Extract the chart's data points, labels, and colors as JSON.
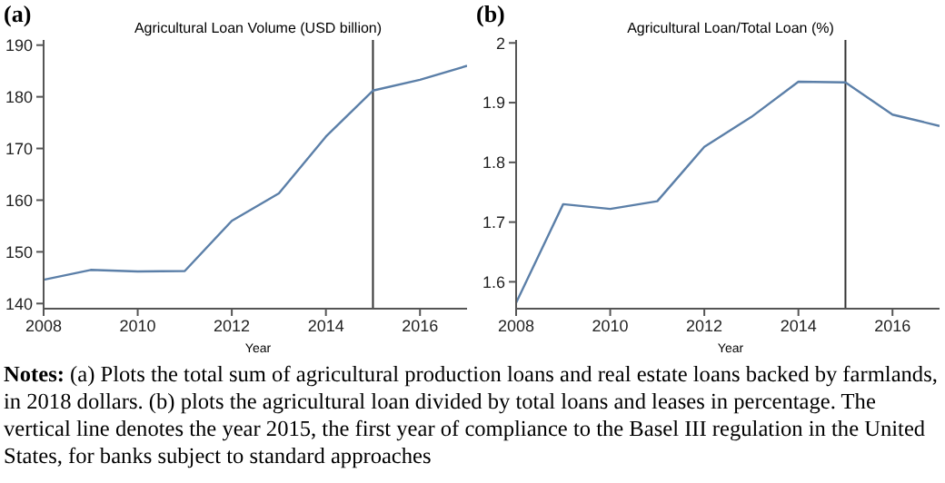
{
  "chart_data": [
    {
      "type": "line",
      "title": "(a)",
      "subtitle": "Agricultural Loan Volume (USD billion)",
      "xlabel": "Year",
      "x": [
        2008,
        2009,
        2010,
        2011,
        2012,
        2013,
        2014,
        2015,
        2016,
        2017
      ],
      "series": [
        {
          "color": "#5b7fa8",
          "values": [
            144.6,
            146.5,
            146.2,
            146.3,
            156,
            161.3,
            172.3,
            181.2,
            183.3,
            186
          ]
        }
      ],
      "xlim": [
        2008,
        2017
      ],
      "xticks": [
        2008,
        2010,
        2012,
        2014,
        2016
      ],
      "ylim": [
        139,
        191
      ],
      "yticks": [
        140,
        150,
        160,
        170,
        180,
        190
      ],
      "ref_lines": [
        {
          "axis": "x",
          "value": 2015,
          "color": "#333333"
        }
      ],
      "annotations": [
        "Notes: (a) Plots the total sum of agricultural production loans and real estate loans backed by farmlands, in 2018 dollars. (b) plots the agricultural loan divided by total loans and leases in percentage. The vertical line denotes the year 2015, the first year of compliance to the Basel III regulation in the United States, for banks subject to standard approaches"
      ]
    },
    {
      "type": "line",
      "title": "(b)",
      "subtitle": "Agricultural Loan/Total Loan (%)",
      "xlabel": "Year",
      "x": [
        2008,
        2009,
        2010,
        2011,
        2012,
        2013,
        2014,
        2015,
        2016,
        2017
      ],
      "series": [
        {
          "color": "#5b7fa8",
          "values": [
            1.565,
            1.73,
            1.722,
            1.735,
            1.826,
            1.876,
            1.935,
            1.934,
            1.88,
            1.861
          ]
        }
      ],
      "xlim": [
        2008,
        2017
      ],
      "xticks": [
        2008,
        2010,
        2012,
        2014,
        2016
      ],
      "ylim": [
        1.555,
        2.005
      ],
      "yticks": [
        1.6,
        1.7,
        1.8,
        1.9,
        {
          "value": 2,
          "label": "2"
        }
      ],
      "ref_lines": [
        {
          "axis": "x",
          "value": 2015,
          "color": "#333333"
        }
      ]
    }
  ]
}
